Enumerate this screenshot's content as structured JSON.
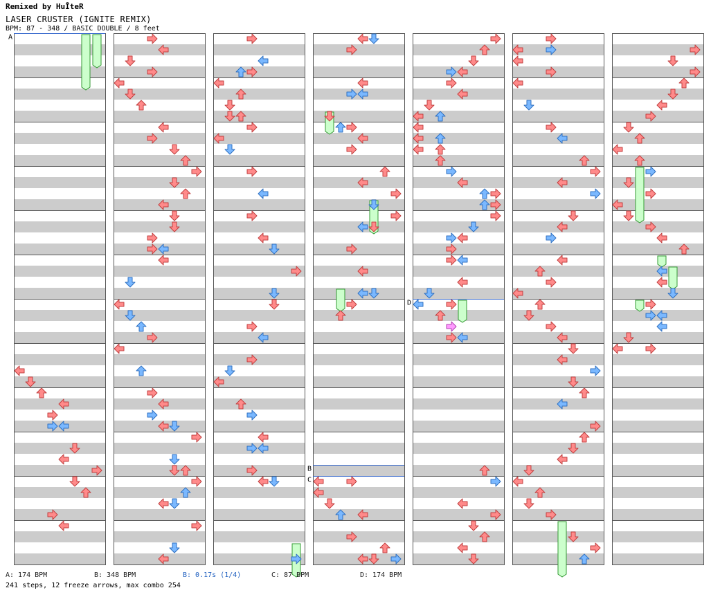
{
  "header": {
    "remixer": "Remixed by HuÎteR",
    "song_title": "LASER CRUSTER (IGNITE REMIX)",
    "info": "BPM: 87 - 348 / BASIC DOUBLE / 8 feet"
  },
  "colors": {
    "red_arrow": "#ff8a8a",
    "red_arrow_stroke": "#c04040",
    "blue_arrow": "#7ab8ff",
    "blue_arrow_stroke": "#3070c0",
    "pink_arrow": "#ff99ff",
    "freeze_fill": "#ccffcc",
    "freeze_stroke": "#339933",
    "stripe": "#cccccc",
    "marker_line": "#3366cc"
  },
  "chart_data": {
    "type": "step-chart",
    "style": "BASIC DOUBLE",
    "lanes": 8,
    "columns": 7,
    "beats_per_column": 48,
    "markers": [
      {
        "label": "A",
        "column": 0,
        "beat": 0
      },
      {
        "label": "D",
        "column": 4,
        "beat": 24
      },
      {
        "label": "B",
        "column": 3,
        "beat": 39
      },
      {
        "label": "C",
        "column": 3,
        "beat": 40
      }
    ],
    "legend": [
      {
        "text": "A: 174 BPM",
        "highlight": false
      },
      {
        "text": "B: 348 BPM",
        "highlight": false
      },
      {
        "text": "B: 0.17s (1/4)",
        "highlight": true
      },
      {
        "text": "C: 87 BPM",
        "highlight": false
      },
      {
        "text": "D: 174 BPM",
        "highlight": false
      }
    ],
    "stats": "241 steps, 12 freeze arrows, max combo 254",
    "notes": [
      [
        0,
        30,
        0,
        "r"
      ],
      [
        0,
        31,
        1,
        "r"
      ],
      [
        0,
        32,
        2,
        "r"
      ],
      [
        0,
        33,
        4,
        "r"
      ],
      [
        0,
        34,
        3,
        "r"
      ],
      [
        0,
        35,
        3,
        "b"
      ],
      [
        0,
        35,
        4,
        "b"
      ],
      [
        0,
        37,
        5,
        "r"
      ],
      [
        0,
        38,
        4,
        "r"
      ],
      [
        0,
        39,
        7,
        "r"
      ],
      [
        0,
        40,
        5,
        "r"
      ],
      [
        0,
        41,
        6,
        "r"
      ],
      [
        0,
        43,
        3,
        "r"
      ],
      [
        0,
        44,
        4,
        "r"
      ],
      [
        1,
        0,
        3,
        "r"
      ],
      [
        1,
        1,
        4,
        "r"
      ],
      [
        1,
        2,
        1,
        "r"
      ],
      [
        1,
        3,
        3,
        "r"
      ],
      [
        1,
        4,
        0,
        "r"
      ],
      [
        1,
        5,
        1,
        "r"
      ],
      [
        1,
        6,
        2,
        "r"
      ],
      [
        1,
        8,
        4,
        "r"
      ],
      [
        1,
        9,
        3,
        "r"
      ],
      [
        1,
        10,
        5,
        "r"
      ],
      [
        1,
        11,
        6,
        "r"
      ],
      [
        1,
        12,
        7,
        "r"
      ],
      [
        1,
        13,
        5,
        "r"
      ],
      [
        1,
        14,
        6,
        "r"
      ],
      [
        1,
        15,
        4,
        "r"
      ],
      [
        1,
        16,
        5,
        "r"
      ],
      [
        1,
        17,
        5,
        "r"
      ],
      [
        1,
        18,
        3,
        "r"
      ],
      [
        1,
        19,
        3,
        "r"
      ],
      [
        1,
        19,
        4,
        "b"
      ],
      [
        1,
        20,
        4,
        "r"
      ],
      [
        1,
        22,
        1,
        "b"
      ],
      [
        1,
        24,
        0,
        "r"
      ],
      [
        1,
        25,
        1,
        "b"
      ],
      [
        1,
        26,
        2,
        "b"
      ],
      [
        1,
        27,
        3,
        "r"
      ],
      [
        1,
        28,
        0,
        "r"
      ],
      [
        1,
        30,
        2,
        "b"
      ],
      [
        1,
        32,
        3,
        "r"
      ],
      [
        1,
        33,
        4,
        "r"
      ],
      [
        1,
        34,
        3,
        "b"
      ],
      [
        1,
        35,
        5,
        "b"
      ],
      [
        1,
        35,
        4,
        "r"
      ],
      [
        1,
        36,
        7,
        "r"
      ],
      [
        1,
        38,
        5,
        "b"
      ],
      [
        1,
        39,
        5,
        "r"
      ],
      [
        1,
        39,
        6,
        "r"
      ],
      [
        1,
        40,
        7,
        "r"
      ],
      [
        1,
        41,
        6,
        "b"
      ],
      [
        1,
        42,
        5,
        "b"
      ],
      [
        1,
        42,
        4,
        "r"
      ],
      [
        1,
        44,
        7,
        "r"
      ],
      [
        1,
        46,
        5,
        "b"
      ],
      [
        1,
        47,
        4,
        "r"
      ],
      [
        2,
        0,
        3,
        "r"
      ],
      [
        2,
        2,
        4,
        "b"
      ],
      [
        2,
        3,
        2,
        "b"
      ],
      [
        2,
        3,
        3,
        "r"
      ],
      [
        2,
        4,
        0,
        "r"
      ],
      [
        2,
        5,
        2,
        "r"
      ],
      [
        2,
        6,
        1,
        "r"
      ],
      [
        2,
        7,
        1,
        "r"
      ],
      [
        2,
        7,
        2,
        "r"
      ],
      [
        2,
        8,
        3,
        "r"
      ],
      [
        2,
        9,
        0,
        "r"
      ],
      [
        2,
        10,
        1,
        "b"
      ],
      [
        2,
        12,
        3,
        "r"
      ],
      [
        2,
        14,
        4,
        "b"
      ],
      [
        2,
        16,
        3,
        "r"
      ],
      [
        2,
        18,
        4,
        "r"
      ],
      [
        2,
        19,
        5,
        "b"
      ],
      [
        2,
        21,
        7,
        "r"
      ],
      [
        2,
        23,
        5,
        "b"
      ],
      [
        2,
        24,
        5,
        "r"
      ],
      [
        2,
        26,
        3,
        "r"
      ],
      [
        2,
        27,
        4,
        "b"
      ],
      [
        2,
        29,
        3,
        "r"
      ],
      [
        2,
        30,
        1,
        "b"
      ],
      [
        2,
        31,
        0,
        "r"
      ],
      [
        2,
        33,
        2,
        "r"
      ],
      [
        2,
        34,
        3,
        "b"
      ],
      [
        2,
        36,
        4,
        "r"
      ],
      [
        2,
        37,
        3,
        "b"
      ],
      [
        2,
        37,
        4,
        "b"
      ],
      [
        2,
        39,
        3,
        "r"
      ],
      [
        2,
        40,
        5,
        "b"
      ],
      [
        2,
        40,
        4,
        "r"
      ],
      [
        2,
        47,
        7,
        "b"
      ],
      [
        3,
        0,
        4,
        "r"
      ],
      [
        3,
        0,
        5,
        "b"
      ],
      [
        3,
        1,
        3,
        "r"
      ],
      [
        3,
        4,
        4,
        "r"
      ],
      [
        3,
        5,
        3,
        "b"
      ],
      [
        3,
        5,
        4,
        "b"
      ],
      [
        3,
        7,
        1,
        "r"
      ],
      [
        3,
        8,
        3,
        "r"
      ],
      [
        3,
        8,
        2,
        "b"
      ],
      [
        3,
        9,
        4,
        "r"
      ],
      [
        3,
        10,
        3,
        "r"
      ],
      [
        3,
        12,
        6,
        "r"
      ],
      [
        3,
        13,
        4,
        "r"
      ],
      [
        3,
        14,
        7,
        "r"
      ],
      [
        3,
        15,
        5,
        "b"
      ],
      [
        3,
        16,
        7,
        "r"
      ],
      [
        3,
        17,
        4,
        "b"
      ],
      [
        3,
        17,
        5,
        "r"
      ],
      [
        3,
        19,
        3,
        "r"
      ],
      [
        3,
        21,
        4,
        "r"
      ],
      [
        3,
        23,
        4,
        "b"
      ],
      [
        3,
        23,
        5,
        "b"
      ],
      [
        3,
        24,
        3,
        "r"
      ],
      [
        3,
        25,
        2,
        "r"
      ],
      [
        3,
        40,
        0,
        "r"
      ],
      [
        3,
        40,
        3,
        "r"
      ],
      [
        3,
        41,
        0,
        "r"
      ],
      [
        3,
        42,
        1,
        "r"
      ],
      [
        3,
        43,
        2,
        "b"
      ],
      [
        3,
        43,
        4,
        "r"
      ],
      [
        3,
        45,
        3,
        "r"
      ],
      [
        3,
        46,
        6,
        "r"
      ],
      [
        3,
        47,
        5,
        "r"
      ],
      [
        3,
        47,
        7,
        "b"
      ],
      [
        3,
        47,
        4,
        "r"
      ],
      [
        4,
        0,
        7,
        "r"
      ],
      [
        4,
        1,
        6,
        "r"
      ],
      [
        4,
        2,
        5,
        "r"
      ],
      [
        4,
        3,
        3,
        "b"
      ],
      [
        4,
        3,
        4,
        "r"
      ],
      [
        4,
        4,
        3,
        "r"
      ],
      [
        4,
        5,
        4,
        "r"
      ],
      [
        4,
        6,
        1,
        "r"
      ],
      [
        4,
        7,
        2,
        "b"
      ],
      [
        4,
        7,
        0,
        "r"
      ],
      [
        4,
        8,
        0,
        "r"
      ],
      [
        4,
        9,
        0,
        "r"
      ],
      [
        4,
        9,
        2,
        "b"
      ],
      [
        4,
        10,
        0,
        "r"
      ],
      [
        4,
        10,
        2,
        "r"
      ],
      [
        4,
        11,
        2,
        "r"
      ],
      [
        4,
        12,
        3,
        "b"
      ],
      [
        4,
        13,
        4,
        "r"
      ],
      [
        4,
        14,
        6,
        "b"
      ],
      [
        4,
        14,
        7,
        "r"
      ],
      [
        4,
        15,
        6,
        "b"
      ],
      [
        4,
        15,
        7,
        "r"
      ],
      [
        4,
        16,
        7,
        "r"
      ],
      [
        4,
        17,
        5,
        "b"
      ],
      [
        4,
        18,
        3,
        "b"
      ],
      [
        4,
        18,
        4,
        "r"
      ],
      [
        4,
        19,
        3,
        "r"
      ],
      [
        4,
        20,
        3,
        "r"
      ],
      [
        4,
        20,
        4,
        "b"
      ],
      [
        4,
        22,
        4,
        "r"
      ],
      [
        4,
        23,
        1,
        "b"
      ],
      [
        4,
        24,
        0,
        "b"
      ],
      [
        4,
        24,
        3,
        "r"
      ],
      [
        4,
        25,
        2,
        "r"
      ],
      [
        4,
        26,
        3,
        "p"
      ],
      [
        4,
        27,
        3,
        "r"
      ],
      [
        4,
        27,
        4,
        "b"
      ],
      [
        4,
        39,
        6,
        "r"
      ],
      [
        4,
        40,
        7,
        "b"
      ],
      [
        4,
        42,
        4,
        "r"
      ],
      [
        4,
        43,
        7,
        "r"
      ],
      [
        4,
        44,
        5,
        "r"
      ],
      [
        4,
        45,
        6,
        "r"
      ],
      [
        4,
        46,
        4,
        "r"
      ],
      [
        4,
        47,
        5,
        "r"
      ],
      [
        4,
        48,
        3,
        "r"
      ],
      [
        4,
        49,
        1,
        "r"
      ],
      [
        5,
        0,
        3,
        "r"
      ],
      [
        5,
        1,
        0,
        "r"
      ],
      [
        5,
        1,
        3,
        "b"
      ],
      [
        5,
        2,
        0,
        "r"
      ],
      [
        5,
        3,
        3,
        "r"
      ],
      [
        5,
        4,
        0,
        "r"
      ],
      [
        5,
        6,
        1,
        "b"
      ],
      [
        5,
        8,
        3,
        "r"
      ],
      [
        5,
        9,
        4,
        "b"
      ],
      [
        5,
        11,
        6,
        "r"
      ],
      [
        5,
        12,
        7,
        "r"
      ],
      [
        5,
        13,
        4,
        "r"
      ],
      [
        5,
        14,
        7,
        "b"
      ],
      [
        5,
        16,
        5,
        "r"
      ],
      [
        5,
        17,
        4,
        "r"
      ],
      [
        5,
        18,
        3,
        "b"
      ],
      [
        5,
        20,
        4,
        "r"
      ],
      [
        5,
        21,
        2,
        "r"
      ],
      [
        5,
        22,
        3,
        "r"
      ],
      [
        5,
        23,
        0,
        "r"
      ],
      [
        5,
        24,
        2,
        "r"
      ],
      [
        5,
        25,
        1,
        "r"
      ],
      [
        5,
        26,
        3,
        "r"
      ],
      [
        5,
        27,
        4,
        "r"
      ],
      [
        5,
        28,
        5,
        "r"
      ],
      [
        5,
        29,
        4,
        "r"
      ],
      [
        5,
        30,
        7,
        "b"
      ],
      [
        5,
        31,
        5,
        "r"
      ],
      [
        5,
        32,
        6,
        "r"
      ],
      [
        5,
        33,
        4,
        "b"
      ],
      [
        5,
        35,
        7,
        "r"
      ],
      [
        5,
        36,
        6,
        "r"
      ],
      [
        5,
        37,
        5,
        "r"
      ],
      [
        5,
        38,
        4,
        "r"
      ],
      [
        5,
        39,
        1,
        "r"
      ],
      [
        5,
        40,
        0,
        "r"
      ],
      [
        5,
        41,
        2,
        "r"
      ],
      [
        5,
        42,
        1,
        "r"
      ],
      [
        5,
        43,
        3,
        "r"
      ],
      [
        5,
        45,
        5,
        "r"
      ],
      [
        5,
        46,
        7,
        "r"
      ],
      [
        5,
        47,
        6,
        "b"
      ],
      [
        6,
        1,
        7,
        "r"
      ],
      [
        6,
        2,
        5,
        "r"
      ],
      [
        6,
        3,
        7,
        "r"
      ],
      [
        6,
        4,
        6,
        "r"
      ],
      [
        6,
        5,
        5,
        "r"
      ],
      [
        6,
        6,
        4,
        "r"
      ],
      [
        6,
        7,
        3,
        "r"
      ],
      [
        6,
        8,
        1,
        "r"
      ],
      [
        6,
        9,
        2,
        "r"
      ],
      [
        6,
        10,
        0,
        "r"
      ],
      [
        6,
        11,
        2,
        "r"
      ],
      [
        6,
        12,
        3,
        "b"
      ],
      [
        6,
        13,
        1,
        "r"
      ],
      [
        6,
        14,
        3,
        "r"
      ],
      [
        6,
        15,
        0,
        "r"
      ],
      [
        6,
        16,
        1,
        "r"
      ],
      [
        6,
        17,
        3,
        "r"
      ],
      [
        6,
        18,
        4,
        "r"
      ],
      [
        6,
        19,
        6,
        "r"
      ],
      [
        6,
        21,
        4,
        "b"
      ],
      [
        6,
        22,
        4,
        "r"
      ],
      [
        6,
        23,
        5,
        "b"
      ],
      [
        6,
        24,
        3,
        "r"
      ],
      [
        6,
        25,
        3,
        "b"
      ],
      [
        6,
        25,
        4,
        "b"
      ],
      [
        6,
        26,
        4,
        "b"
      ],
      [
        6,
        27,
        1,
        "r"
      ],
      [
        6,
        28,
        0,
        "r"
      ],
      [
        6,
        28,
        3,
        "r"
      ]
    ],
    "freezes": [
      [
        0,
        0,
        7,
        2
      ],
      [
        0,
        0,
        6,
        4
      ],
      [
        2,
        46,
        7,
        48
      ],
      [
        3,
        7,
        1,
        8
      ],
      [
        3,
        15,
        5,
        17
      ],
      [
        3,
        23,
        2,
        24
      ],
      [
        4,
        24,
        4,
        25
      ],
      [
        5,
        44,
        4,
        48
      ],
      [
        6,
        12,
        2,
        16
      ],
      [
        6,
        20,
        4,
        20
      ],
      [
        6,
        21,
        5,
        22
      ],
      [
        6,
        24,
        2,
        24
      ]
    ]
  }
}
